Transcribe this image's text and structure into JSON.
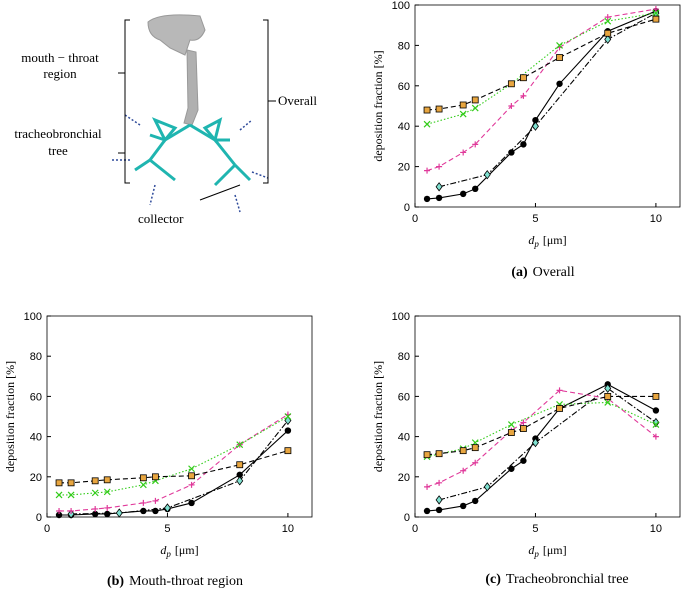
{
  "illustration": {
    "mouth_throat": [
      "mouth − throat",
      "region"
    ],
    "tracheobronchial": [
      "tracheobronchial",
      "tree"
    ],
    "overall": "Overall",
    "collector": "collector"
  },
  "chart_data": [
    {
      "type": "line",
      "caption_label": "(a)",
      "caption": "Overall",
      "ylabel": "deposition fraction [%]",
      "xlabel": {
        "main": "d",
        "sub": "p",
        "rest": "[μm]"
      },
      "xlim": [
        0,
        11
      ],
      "ylim": [
        0,
        100
      ],
      "xticks": [
        0,
        5,
        10
      ],
      "yticks": [
        0,
        20,
        40,
        60,
        80,
        100
      ],
      "grid": false,
      "series": [
        {
          "color": "#000000",
          "dash": "solid",
          "marker": "circle",
          "marker_fill": "#000000",
          "x": [
            0.5,
            1,
            2,
            2.5,
            4,
            4.5,
            5,
            6,
            8,
            10
          ],
          "values": [
            4,
            4.5,
            6.5,
            9,
            27,
            31,
            43,
            61,
            87,
            97
          ]
        },
        {
          "color": "#000000",
          "dash": "dashdot",
          "marker": "diamond",
          "marker_fill": "#7fe0d0",
          "x": [
            1,
            3,
            5,
            8,
            10
          ],
          "values": [
            10,
            16,
            40,
            83,
            96
          ]
        },
        {
          "color": "#e0399a",
          "dash": "dashed",
          "marker": "plus",
          "marker_fill": "#e0399a",
          "x": [
            0.5,
            1,
            2,
            2.5,
            4,
            4.5,
            6,
            8,
            10
          ],
          "values": [
            18,
            20,
            27,
            31,
            50,
            55,
            79,
            94,
            98
          ]
        },
        {
          "color": "#33cc1a",
          "dash": "dotted",
          "marker": "x",
          "marker_fill": "#33cc1a",
          "x": [
            0.5,
            2,
            2.5,
            4,
            6,
            8,
            10
          ],
          "values": [
            41,
            46,
            49,
            61,
            80,
            92,
            96
          ]
        },
        {
          "color": "#000000",
          "dash": "dashed",
          "marker": "square",
          "marker_fill": "#e8a640",
          "x": [
            0.5,
            1,
            2,
            2.5,
            4,
            4.5,
            6,
            8,
            10
          ],
          "values": [
            48,
            48.5,
            50.5,
            53,
            61,
            64,
            74,
            86,
            93
          ]
        }
      ]
    },
    {
      "type": "line",
      "caption_label": "(b)",
      "caption": "Mouth-throat region",
      "ylabel": "deposition fraction [%]",
      "xlabel": {
        "main": "d",
        "sub": "p",
        "rest": "[μm]"
      },
      "xlim": [
        0,
        11
      ],
      "ylim": [
        0,
        100
      ],
      "xticks": [
        0,
        5,
        10
      ],
      "yticks": [
        0,
        20,
        40,
        60,
        80,
        100
      ],
      "grid": false,
      "series": [
        {
          "color": "#000000",
          "dash": "solid",
          "marker": "circle",
          "marker_fill": "#000000",
          "x": [
            0.5,
            1,
            2,
            2.5,
            4,
            4.5,
            5,
            6,
            8,
            10
          ],
          "values": [
            1,
            1,
            1.5,
            1.5,
            3,
            3,
            4,
            7,
            21,
            43
          ]
        },
        {
          "color": "#000000",
          "dash": "dashdot",
          "marker": "diamond",
          "marker_fill": "#7fe0d0",
          "x": [
            1,
            3,
            5,
            8,
            10
          ],
          "values": [
            1.5,
            2,
            4.5,
            18,
            48
          ]
        },
        {
          "color": "#e0399a",
          "dash": "dashed",
          "marker": "plus",
          "marker_fill": "#e0399a",
          "x": [
            0.5,
            1,
            2,
            2.5,
            4,
            4.5,
            6,
            8,
            10
          ],
          "values": [
            3,
            3,
            4,
            4.5,
            7,
            8,
            16,
            36,
            51
          ]
        },
        {
          "color": "#33cc1a",
          "dash": "dotted",
          "marker": "x",
          "marker_fill": "#33cc1a",
          "x": [
            0.5,
            1,
            2,
            2.5,
            4,
            4.5,
            6,
            8,
            10
          ],
          "values": [
            11,
            11,
            12,
            12.5,
            16,
            18,
            24,
            36,
            50
          ]
        },
        {
          "color": "#000000",
          "dash": "dashed",
          "marker": "square",
          "marker_fill": "#e8a640",
          "x": [
            0.5,
            1,
            2,
            2.5,
            4,
            4.5,
            6,
            8,
            10
          ],
          "values": [
            17,
            17,
            18,
            18.5,
            19.5,
            20,
            20.5,
            26,
            33
          ]
        }
      ]
    },
    {
      "type": "line",
      "caption_label": "(c)",
      "caption": "Tracheobronchial tree",
      "ylabel": "deposition fraction [%]",
      "xlabel": {
        "main": "d",
        "sub": "p",
        "rest": "[μm]"
      },
      "xlim": [
        0,
        11
      ],
      "ylim": [
        0,
        100
      ],
      "xticks": [
        0,
        5,
        10
      ],
      "yticks": [
        0,
        20,
        40,
        60,
        80,
        100
      ],
      "grid": false,
      "series": [
        {
          "color": "#000000",
          "dash": "solid",
          "marker": "circle",
          "marker_fill": "#000000",
          "x": [
            0.5,
            1,
            2,
            2.5,
            4,
            4.5,
            5,
            6,
            8,
            10
          ],
          "values": [
            3,
            3.5,
            5.5,
            8,
            24,
            28,
            39,
            54,
            66,
            53
          ]
        },
        {
          "color": "#000000",
          "dash": "dashdot",
          "marker": "diamond",
          "marker_fill": "#7fe0d0",
          "x": [
            1,
            3,
            5,
            8,
            10
          ],
          "values": [
            8.5,
            15,
            37,
            64,
            47
          ]
        },
        {
          "color": "#e0399a",
          "dash": "dashed",
          "marker": "plus",
          "marker_fill": "#e0399a",
          "x": [
            0.5,
            1,
            2,
            2.5,
            4,
            4.5,
            6,
            8,
            10
          ],
          "values": [
            15,
            17,
            23,
            27,
            43,
            47,
            63,
            59,
            40
          ]
        },
        {
          "color": "#33cc1a",
          "dash": "dotted",
          "marker": "x",
          "marker_fill": "#33cc1a",
          "x": [
            0.5,
            2,
            2.5,
            4,
            6,
            8,
            10
          ],
          "values": [
            30,
            34,
            37,
            46,
            56,
            57,
            46
          ]
        },
        {
          "color": "#000000",
          "dash": "dashed",
          "marker": "square",
          "marker_fill": "#e8a640",
          "x": [
            0.5,
            1,
            2,
            2.5,
            4,
            4.5,
            6,
            8,
            10
          ],
          "values": [
            31,
            31.5,
            33,
            34.5,
            42,
            44,
            54,
            60,
            60
          ]
        }
      ]
    }
  ]
}
